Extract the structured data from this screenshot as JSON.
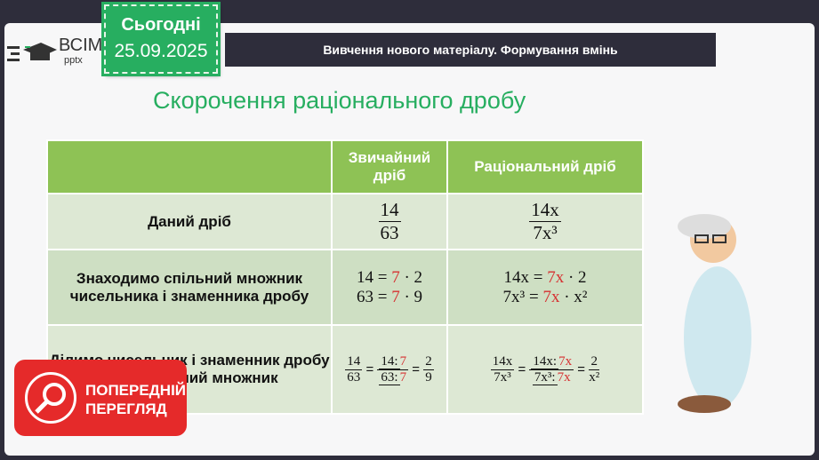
{
  "logo": {
    "text": "ВСІМ",
    "sub": "pptx"
  },
  "date": {
    "label": "Сьогодні",
    "value": "25.09.2025"
  },
  "header": "Вивчення нового матеріалу. Формування вмінь",
  "title": "Скорочення раціонального дробу",
  "table": {
    "headers": [
      "",
      "Звичайний дріб",
      "Раціональний дріб"
    ],
    "rows": [
      {
        "label": "Даний дріб",
        "c1": {
          "num": "14",
          "den": "63"
        },
        "c2": {
          "num": "14x",
          "den": "7x³"
        }
      },
      {
        "label": "Знаходимо спільний множник чисельника і знаменника дробу",
        "c1": [
          "14 = ",
          "7",
          " · 2",
          "63 = ",
          "7",
          " · 9"
        ],
        "c2": [
          "14x = ",
          "7x",
          " · 2",
          "7x³ = ",
          "7x",
          " · x²"
        ]
      },
      {
        "label": "Ділимо чисельник і знаменник дробу на їх спільний множник",
        "c1": {
          "a": "14",
          "b": "63",
          "cn": "14:",
          "cd": "63:",
          "r": "7",
          "rn": "2",
          "rd": "9"
        },
        "c2": {
          "a": "14x",
          "b": "7x³",
          "cn": "14x:",
          "cd": "7x³:",
          "r": "7x",
          "rn": "2",
          "rd": "x²"
        }
      }
    ]
  },
  "preview": {
    "line1": "ПОПЕРЕДНІЙ",
    "line2": "ПЕРЕГЛЯД",
    "icon": "search-icon"
  },
  "colors": {
    "green": "#27ae60",
    "header_green": "#8ec255",
    "red": "#d63031",
    "preview": "#e52a2a"
  }
}
